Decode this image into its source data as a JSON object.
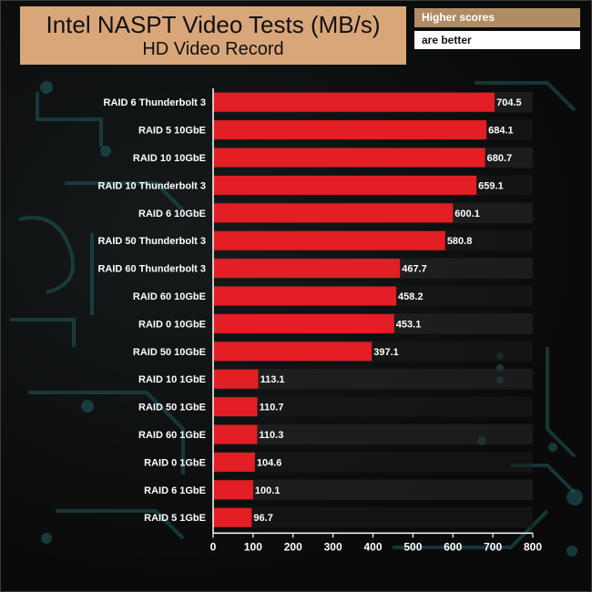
{
  "header": {
    "title": "Intel NASPT Video Tests (MB/s)",
    "subtitle": "HD Video Record",
    "note_line1": "Higher scores",
    "note_line2": "are better"
  },
  "colors": {
    "bar": "#e31e24",
    "title_bg": "#d9a67a",
    "note_bg": "#b08c65",
    "background": "#0b0b0b",
    "circuit": "#1f5a5c"
  },
  "chart_data": {
    "type": "bar",
    "orientation": "horizontal",
    "title": "Intel NASPT Video Tests (MB/s)",
    "subtitle": "HD Video Record",
    "categories": [
      "RAID 6 Thunderbolt 3",
      "RAID 5 10GbE",
      "RAID 10 10GbE",
      "RAID 10 Thunderbolt 3",
      "RAID 6 10GbE",
      "RAID 50 Thunderbolt 3",
      "RAID 60 Thunderbolt 3",
      "RAID 60 10GbE",
      "RAID 0 10GbE",
      "RAID 50 10GbE",
      "RAID 10 1GbE",
      "RAID 50 1GbE",
      "RAID 60 1GbE",
      "RAID 0 1GbE",
      "RAID 6 1GbE",
      "RAID 5 1GbE"
    ],
    "values": [
      704.5,
      684.1,
      680.7,
      659.1,
      600.1,
      580.8,
      467.7,
      458.2,
      453.1,
      397.1,
      113.1,
      110.7,
      110.3,
      104.6,
      100.1,
      96.7
    ],
    "value_labels": [
      "704.5",
      "684.1",
      "680.7",
      "659.1",
      "600.1",
      "580.8",
      "467.7",
      "458.2",
      "453.1",
      "397.1",
      "113.1",
      "110.7",
      "110.3",
      "104.6",
      "100.1",
      "96.7"
    ],
    "xlim": [
      0,
      800
    ],
    "xticks": [
      "0",
      "100",
      "200",
      "300",
      "400",
      "500",
      "600",
      "700",
      "800"
    ],
    "xlabel": "",
    "ylabel": "",
    "grid": "alternating row bands"
  }
}
